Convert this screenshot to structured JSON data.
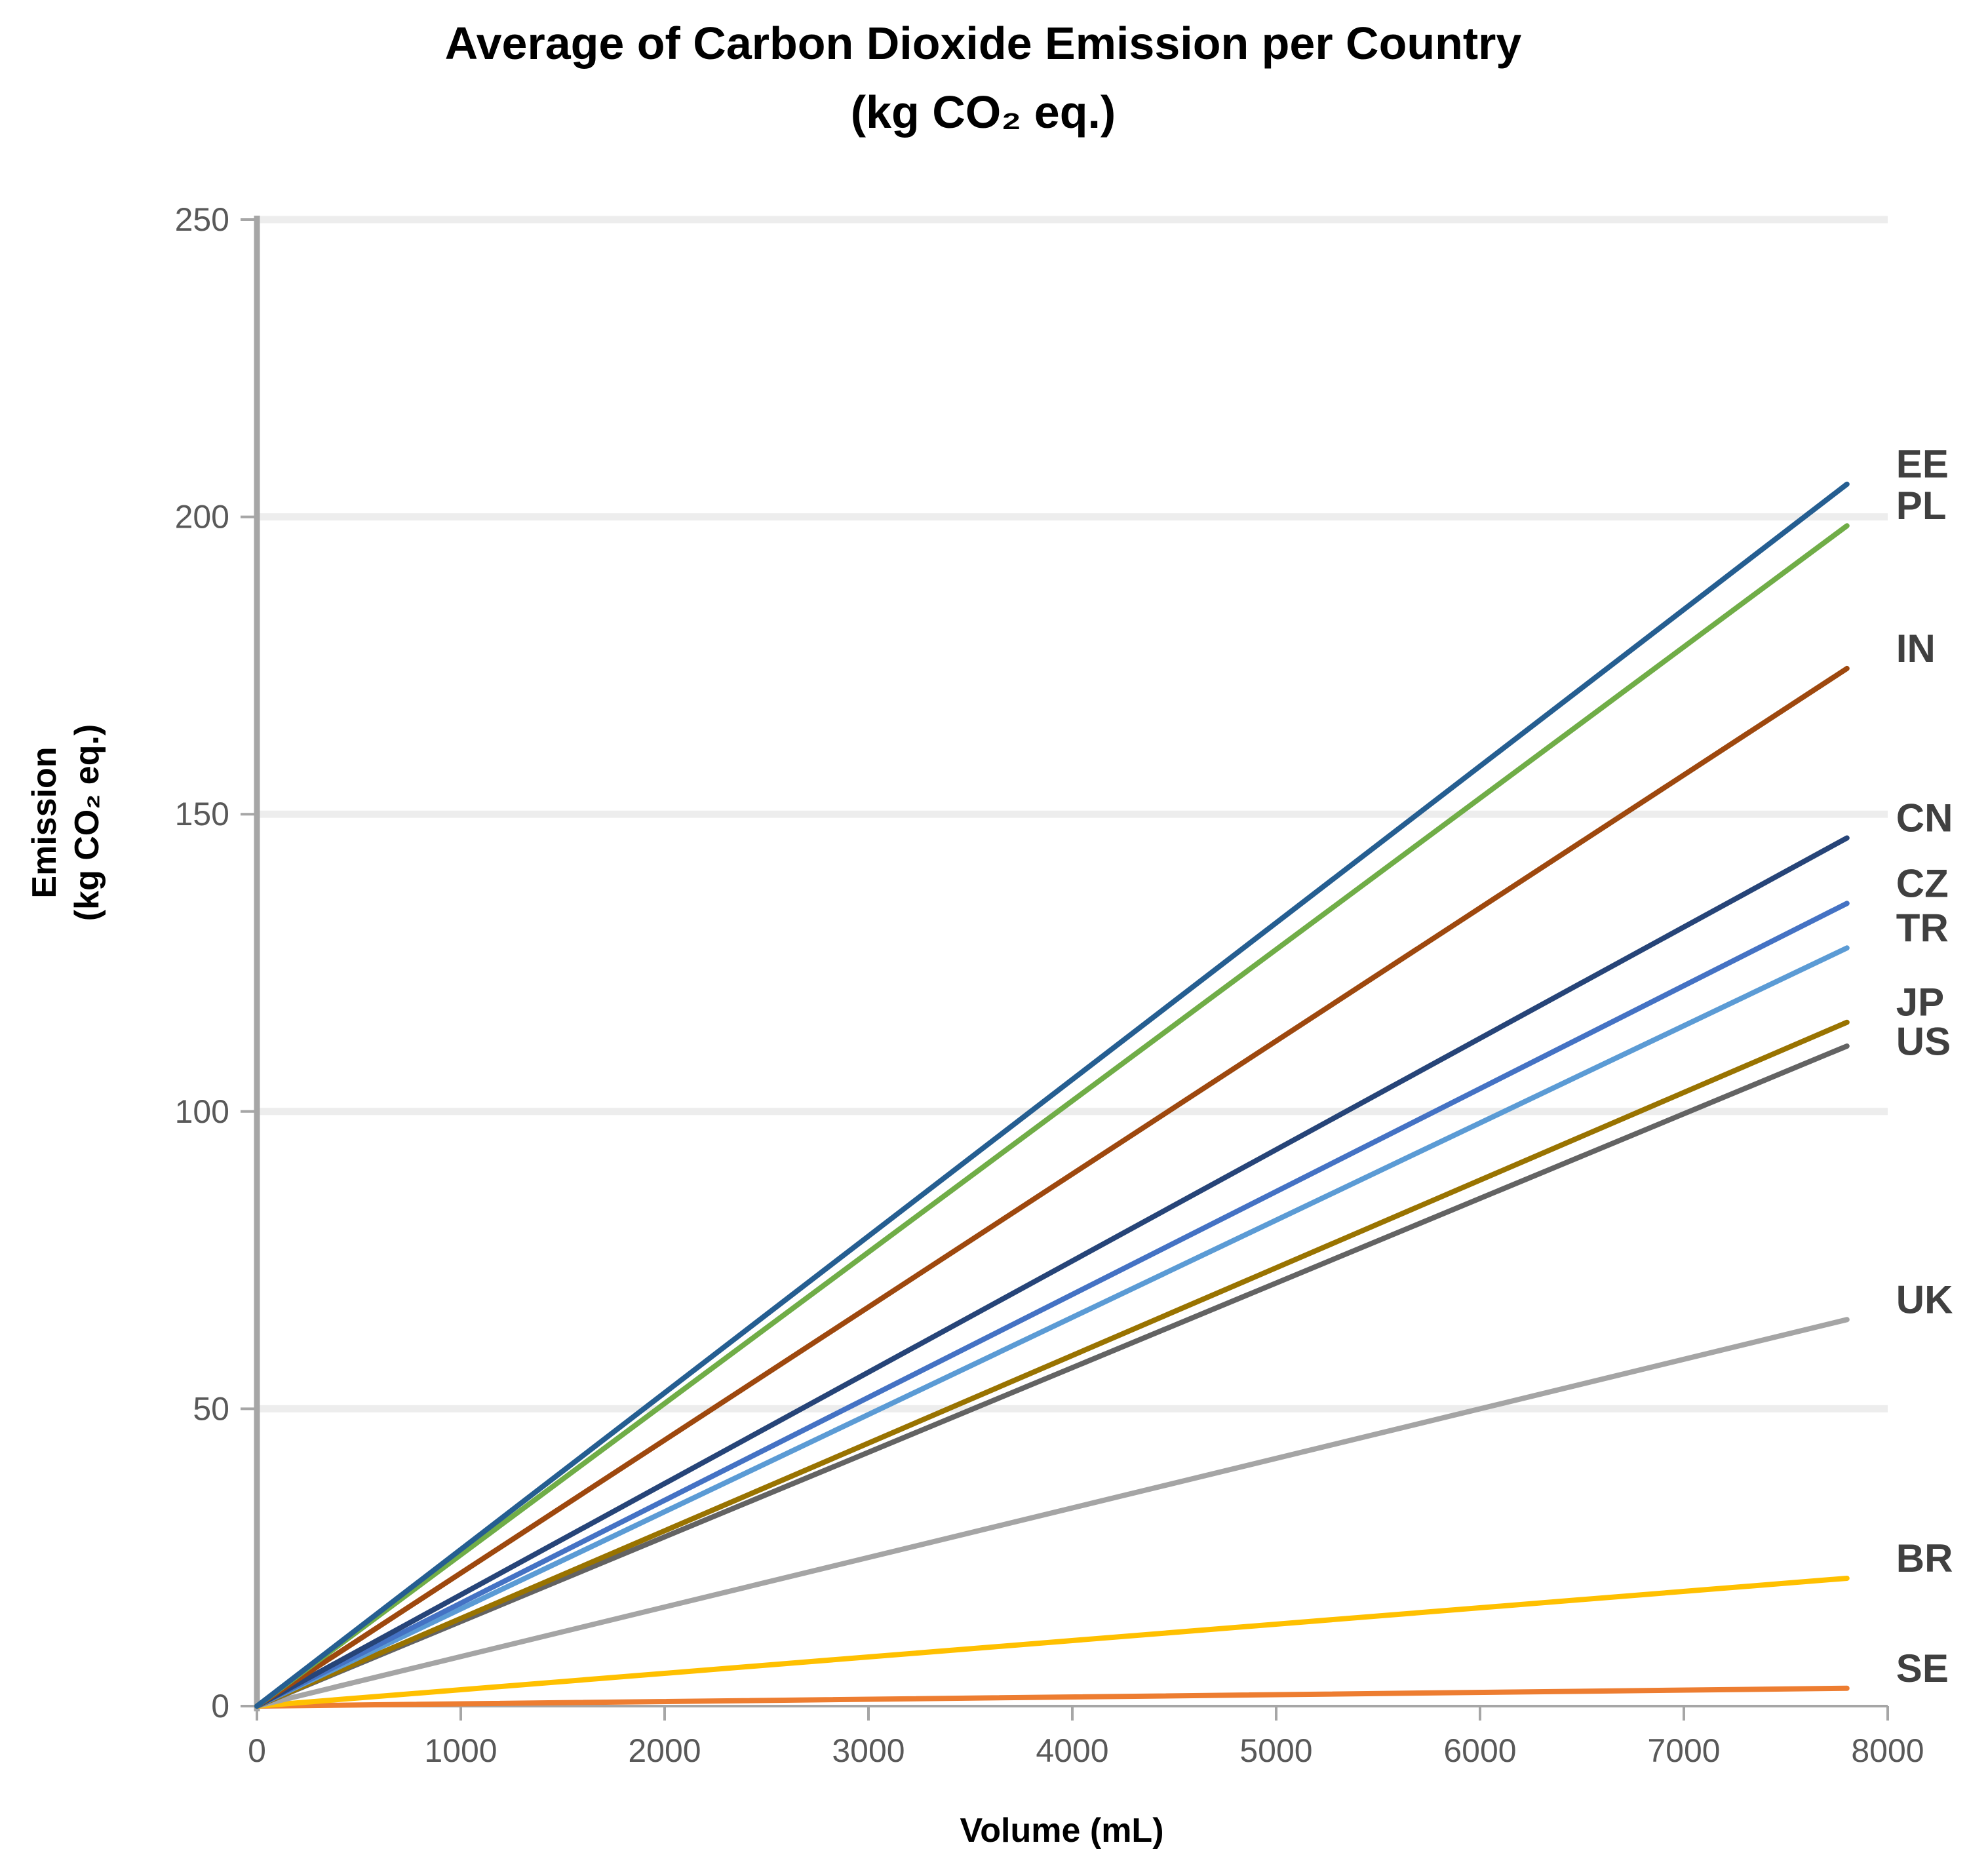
{
  "chart_data": {
    "type": "line",
    "title": "Average of Carbon Dioxide Emission per Country",
    "subtitle": "(kg CO₂ eq.)",
    "xlabel": "Volume (mL)",
    "ylabel_line1": "Emission",
    "ylabel_line2": "(kg CO₂ eq.)",
    "xlim": [
      0,
      8000
    ],
    "ylim": [
      0,
      250
    ],
    "x_ticks": [
      0,
      1000,
      2000,
      3000,
      4000,
      5000,
      6000,
      7000,
      8000
    ],
    "y_ticks": [
      0,
      50,
      100,
      150,
      200,
      250
    ],
    "grid": "horizontal",
    "legend": "direct labels at right end of lines",
    "x": [
      0,
      7800
    ],
    "series": [
      {
        "name": "EE",
        "color": "#255E91",
        "values": [
          0,
          205.5
        ]
      },
      {
        "name": "PL",
        "color": "#70AD47",
        "values": [
          0,
          198.5
        ]
      },
      {
        "name": "IN",
        "color": "#9E480E",
        "values": [
          0,
          174.5
        ]
      },
      {
        "name": "CN",
        "color": "#264478",
        "values": [
          0,
          146
        ]
      },
      {
        "name": "CZ",
        "color": "#4472C4",
        "values": [
          0,
          135
        ]
      },
      {
        "name": "TR",
        "color": "#5B9BD5",
        "values": [
          0,
          127.5
        ]
      },
      {
        "name": "JP",
        "color": "#997300",
        "values": [
          0,
          115
        ]
      },
      {
        "name": "US",
        "color": "#636363",
        "values": [
          0,
          111
        ]
      },
      {
        "name": "UK",
        "color": "#A5A5A5",
        "values": [
          0,
          65
        ]
      },
      {
        "name": "BR",
        "color": "#FFC000",
        "values": [
          0,
          21.5
        ]
      },
      {
        "name": "SE",
        "color": "#ED7D31",
        "values": [
          0,
          3
        ]
      }
    ]
  }
}
